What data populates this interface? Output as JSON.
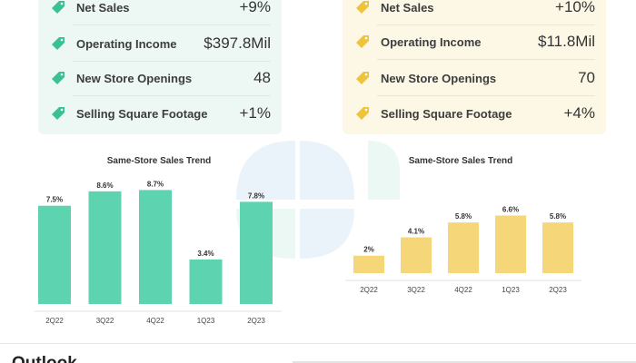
{
  "colors": {
    "left_accent": "#5dd3b0",
    "left_panel": "#edf8f4",
    "right_accent": "#f5d77a",
    "right_panel": "#fdf8e6",
    "left_tag": "#3bbf95",
    "right_tag": "#efc43a"
  },
  "left_panel": {
    "metrics": [
      {
        "label": "Net Sales",
        "value": "+9%",
        "icon": "price-tag-icon"
      },
      {
        "label": "Operating Income",
        "value": "$397.8Mil",
        "icon": "price-tag-icon"
      },
      {
        "label": "New Store Openings",
        "value": "48",
        "icon": "price-tag-icon"
      },
      {
        "label": "Selling Square Footage",
        "value": "+1%",
        "icon": "price-tag-icon"
      }
    ]
  },
  "right_panel": {
    "metrics": [
      {
        "label": "Net Sales",
        "value": "+10%",
        "icon": "price-tag-icon"
      },
      {
        "label": "Operating Income",
        "value": "$11.8Mil",
        "icon": "price-tag-icon"
      },
      {
        "label": "New Store Openings",
        "value": "70",
        "icon": "price-tag-icon"
      },
      {
        "label": "Selling Square Footage",
        "value": "+4%",
        "icon": "price-tag-icon"
      }
    ]
  },
  "chart_data": [
    {
      "type": "bar",
      "title": "Same-Store Sales Trend",
      "categories": [
        "2Q22",
        "3Q22",
        "4Q22",
        "1Q23",
        "2Q23"
      ],
      "values": [
        7.5,
        8.6,
        8.7,
        3.4,
        7.8
      ],
      "value_labels": [
        "7.5%",
        "8.6%",
        "8.7%",
        "3.4%",
        "7.8%"
      ],
      "xlabel": "",
      "ylabel": "",
      "ylim": [
        0,
        10
      ],
      "grid": false,
      "color": "#5dd3b0"
    },
    {
      "type": "bar",
      "title": "Same-Store Sales Trend",
      "categories": [
        "2Q22",
        "3Q22",
        "4Q22",
        "1Q23",
        "2Q23"
      ],
      "values": [
        2,
        4.1,
        5.8,
        6.6,
        5.8
      ],
      "value_labels": [
        "2%",
        "4.1%",
        "5.8%",
        "6.6%",
        "5.8%"
      ],
      "xlabel": "",
      "ylabel": "",
      "ylim": [
        0,
        10
      ],
      "grid": false,
      "color": "#f5d77a"
    }
  ],
  "outlook": {
    "heading": "Outlook"
  }
}
